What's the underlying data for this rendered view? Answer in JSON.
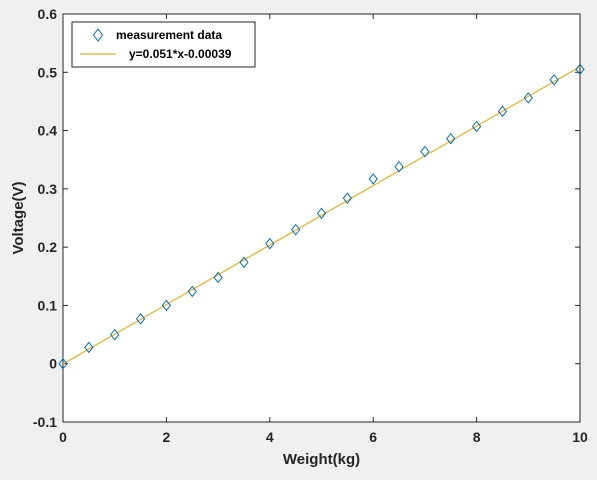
{
  "chart_data": {
    "type": "scatter",
    "title": "",
    "xlabel": "Weight(kg)",
    "ylabel": "Voltage(V)",
    "xlim": [
      0,
      10
    ],
    "ylim": [
      -0.1,
      0.6
    ],
    "xticks": [
      0,
      2,
      4,
      6,
      8,
      10
    ],
    "yticks": [
      -0.1,
      0,
      0.1,
      0.2,
      0.3,
      0.4,
      0.5,
      0.6
    ],
    "xtick_labels": [
      "0",
      "2",
      "4",
      "6",
      "8",
      "10"
    ],
    "ytick_labels": [
      "-0.1",
      "0",
      "0.1",
      "0.2",
      "0.3",
      "0.4",
      "0.5",
      "0.6"
    ],
    "grid": false,
    "legend_position": "top-left",
    "series": [
      {
        "name": "measurement data",
        "kind": "scatter",
        "marker": "diamond",
        "color": "#0072bd",
        "x": [
          0,
          0.5,
          1,
          1.5,
          2,
          2.5,
          3,
          3.5,
          4,
          4.5,
          5,
          5.5,
          6,
          6.5,
          7,
          7.5,
          8,
          8.5,
          9,
          9.5,
          10
        ],
        "y": [
          0.0,
          0.028,
          0.05,
          0.077,
          0.1,
          0.124,
          0.148,
          0.174,
          0.206,
          0.23,
          0.258,
          0.284,
          0.317,
          0.338,
          0.364,
          0.386,
          0.407,
          0.433,
          0.456,
          0.487,
          0.505
        ]
      },
      {
        "name": "y=0.051*x-0.00039",
        "kind": "line",
        "color": "#edb120",
        "x": [
          0,
          10
        ],
        "y": [
          -0.00039,
          0.50961
        ]
      }
    ]
  }
}
